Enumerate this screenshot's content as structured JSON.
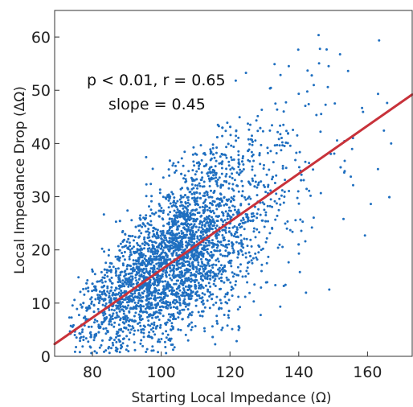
{
  "chart_data": {
    "type": "scatter",
    "xlabel": "Starting Local Impedance (Ω)",
    "ylabel": "Local Impedance Drop (ΔΩ)",
    "xlim": [
      69,
      173
    ],
    "ylim": [
      0,
      65
    ],
    "xticks": [
      80,
      100,
      120,
      140,
      160
    ],
    "yticks": [
      0,
      10,
      20,
      30,
      40,
      50,
      60
    ],
    "grid": false,
    "annotations": [
      "p < 0.01, r = 0.65",
      "slope = 0.45"
    ],
    "fit_line": {
      "slope": 0.45,
      "x": [
        69,
        173
      ],
      "y": [
        2.3,
        49.2
      ]
    },
    "point_color": "#1f6fc0",
    "line_color": "#c8323a",
    "cloud": {
      "count": 3400,
      "x_mean": 103,
      "x_sd": 13,
      "y_at_x": {
        "x0": 69,
        "y0": 2.3,
        "slope": 0.45
      },
      "y_sd": 6.5
    }
  }
}
